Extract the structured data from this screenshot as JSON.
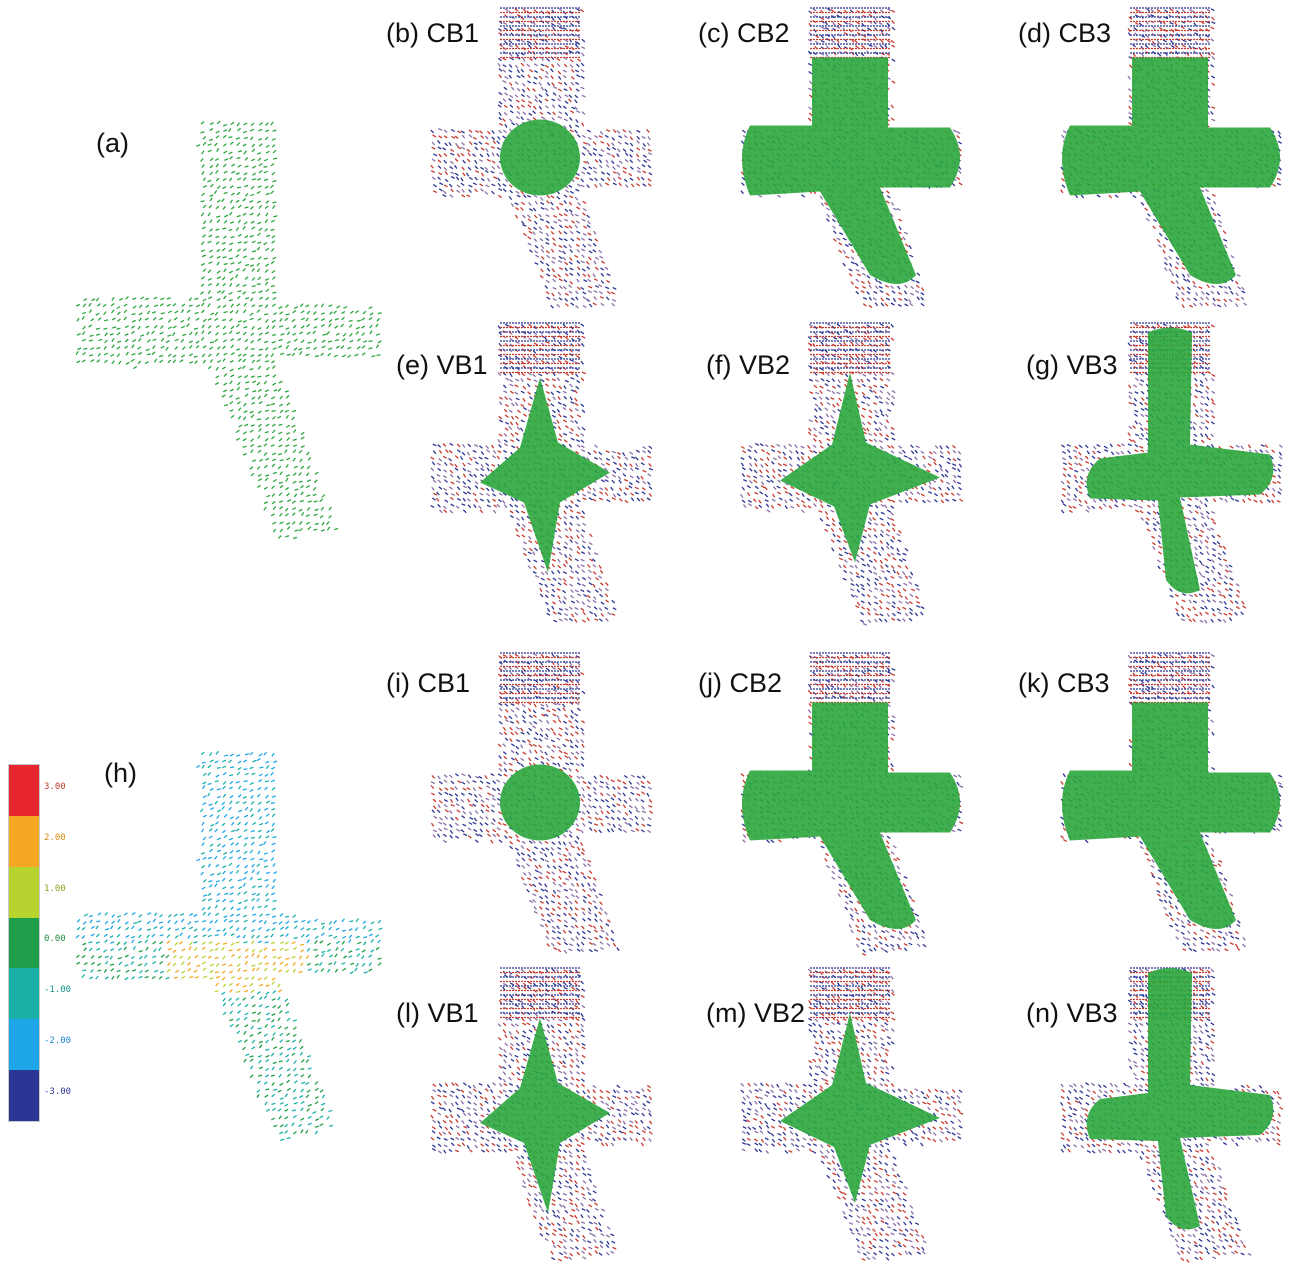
{
  "panels": [
    {
      "label": "(a)",
      "style": "plain"
    },
    {
      "label": "(b) CB1",
      "style": "cb1"
    },
    {
      "label": "(c) CB2",
      "style": "cb2"
    },
    {
      "label": "(d) CB3",
      "style": "cb3"
    },
    {
      "label": "(e) VB1",
      "style": "vb1"
    },
    {
      "label": "(f) VB2",
      "style": "vb2"
    },
    {
      "label": "(g) VB3",
      "style": "vb3"
    },
    {
      "label": "(h)",
      "style": "colored"
    },
    {
      "label": "(i) CB1",
      "style": "cb1"
    },
    {
      "label": "(j) CB2",
      "style": "cb2"
    },
    {
      "label": "(k) CB3",
      "style": "cb3"
    },
    {
      "label": "(l) VB1",
      "style": "vb1"
    },
    {
      "label": "(m) VB2",
      "style": "vb2"
    },
    {
      "label": "(n) VB3",
      "style": "vb3"
    }
  ],
  "colorbar": {
    "ticks": [
      "3.00",
      "2.00",
      "1.00",
      "0.00",
      "-1.00",
      "-2.00",
      "-3.00"
    ],
    "colors": [
      "#e8262d",
      "#f5a623",
      "#b7d330",
      "#1e9e48",
      "#19b0a8",
      "#1ea6e8",
      "#2b3593"
    ],
    "tick_colors": [
      "#c0392b",
      "#d48a10",
      "#8aa020",
      "#1e8e40",
      "#139088",
      "#1a86c8",
      "#2b3593"
    ]
  },
  "colors": {
    "green": "#2aa63c",
    "red": "#c8392e",
    "blue": "#2b3593"
  }
}
